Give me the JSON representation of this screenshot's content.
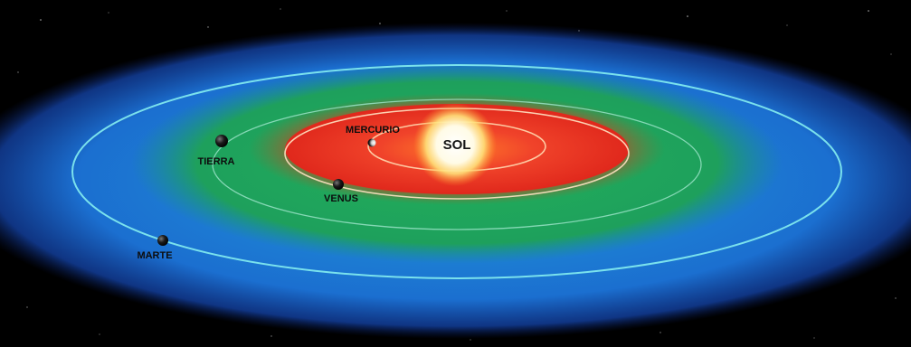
{
  "diagram": {
    "sun": {
      "label": "SOL"
    },
    "planets": [
      {
        "key": "mercurio",
        "label": "MERCURIO"
      },
      {
        "key": "venus",
        "label": "VENUS"
      },
      {
        "key": "tierra",
        "label": "TIERRA"
      },
      {
        "key": "marte",
        "label": "MARTE"
      }
    ],
    "colors": {
      "background": "#000000",
      "outer_zone": "#1e78d6",
      "habitable_zone": "#1fa85a",
      "hot_zone": "#e8301e",
      "orbit_line": "#7fe0e8",
      "sun": "#ffffff"
    }
  }
}
